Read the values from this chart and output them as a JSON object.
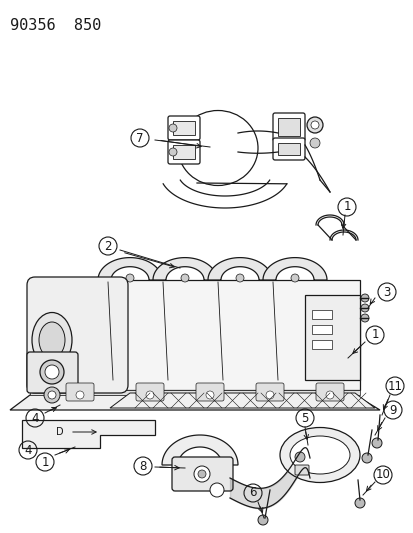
{
  "title_text": "90356  850",
  "bg_color": "#ffffff",
  "line_color": "#1a1a1a",
  "title_fontsize": 11,
  "label_fontsize": 8.5,
  "lw": 0.9
}
